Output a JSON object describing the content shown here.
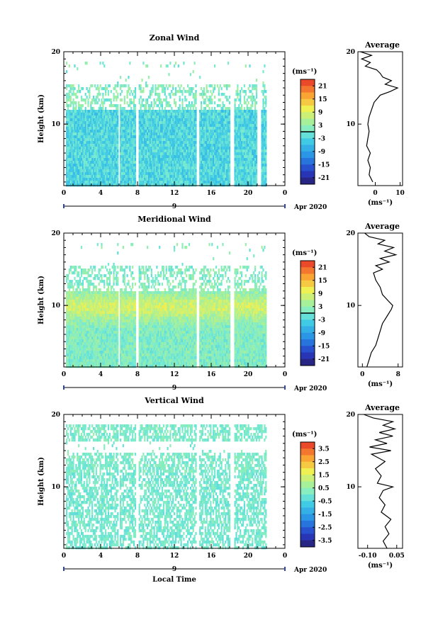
{
  "chart_data": [
    {
      "type": "heatmap",
      "title": "Zonal Wind",
      "ylabel": "Height (km)",
      "xticks": [
        "0",
        "4",
        "8",
        "12",
        "16",
        "20",
        "0"
      ],
      "yticks": [
        "10",
        "20"
      ],
      "xlim": [
        0,
        24
      ],
      "ylim": [
        1.5,
        20
      ],
      "date_marker": "9",
      "date_label": "Apr 2020",
      "colorbar": {
        "unit": "(ms⁻¹)",
        "ticks": [
          "21",
          "15",
          "9",
          "3",
          "-3",
          "-9",
          "-15",
          "-21"
        ],
        "range": [
          -24,
          24
        ],
        "zero_line": 0
      },
      "data_gaps_hours": [
        [
          5.8,
          6.0
        ],
        [
          7.8,
          8.1
        ],
        [
          14.3,
          14.6
        ],
        [
          18.0,
          18.4
        ],
        [
          20.9,
          21.3
        ],
        [
          21.9,
          22.3
        ]
      ],
      "data_end_hour": 22.3,
      "pattern": {
        "lower_mean": -3,
        "upper_mean": 1,
        "noise": 3.5,
        "contour_zero": true
      },
      "profile": {
        "title": "Average",
        "xlabel": "(ms⁻¹)",
        "xticks": [
          "0",
          "10"
        ],
        "yticks": [
          "10",
          "20"
        ],
        "xlim": [
          -7,
          11
        ],
        "points": [
          {
            "h": 2.0,
            "v": -1.0
          },
          {
            "h": 3.0,
            "v": -2.5
          },
          {
            "h": 4.0,
            "v": -2.0
          },
          {
            "h": 5.0,
            "v": -3.0
          },
          {
            "h": 6.0,
            "v": -2.0
          },
          {
            "h": 7.0,
            "v": -3.5
          },
          {
            "h": 8.0,
            "v": -3.0
          },
          {
            "h": 9.0,
            "v": -2.5
          },
          {
            "h": 10.0,
            "v": -3.0
          },
          {
            "h": 11.0,
            "v": -2.5
          },
          {
            "h": 12.0,
            "v": -1.5
          },
          {
            "h": 13.0,
            "v": -0.5
          },
          {
            "h": 14.0,
            "v": 2.0
          },
          {
            "h": 14.5,
            "v": 6.0
          },
          {
            "h": 15.0,
            "v": 9.0
          },
          {
            "h": 15.5,
            "v": 4.0
          },
          {
            "h": 16.0,
            "v": 6.5
          },
          {
            "h": 16.5,
            "v": 3.0
          },
          {
            "h": 17.0,
            "v": 2.0
          },
          {
            "h": 17.5,
            "v": 0.5
          },
          {
            "h": 18.0,
            "v": -4.0
          },
          {
            "h": 18.5,
            "v": -2.0
          },
          {
            "h": 19.0,
            "v": -5.5
          },
          {
            "h": 19.5,
            "v": -1.5
          },
          {
            "h": 20.0,
            "v": -6.0
          }
        ]
      }
    },
    {
      "type": "heatmap",
      "title": "Meridional Wind",
      "ylabel": "Height (km)",
      "xticks": [
        "0",
        "4",
        "8",
        "12",
        "16",
        "20",
        "0"
      ],
      "yticks": [
        "10",
        "20"
      ],
      "xlim": [
        0,
        24
      ],
      "ylim": [
        1.5,
        20
      ],
      "date_marker": "9",
      "date_label": "Apr 2020",
      "colorbar": {
        "unit": "(ms⁻¹)",
        "ticks": [
          "21",
          "15",
          "9",
          "3",
          "-3",
          "-9",
          "-15",
          "-21"
        ],
        "range": [
          -24,
          24
        ],
        "zero_line": 0
      },
      "data_gaps_hours": [
        [
          5.8,
          6.0
        ],
        [
          7.8,
          8.1
        ],
        [
          14.3,
          14.6
        ],
        [
          18.0,
          18.4
        ],
        [
          21.9,
          22.3
        ]
      ],
      "data_end_hour": 22.3,
      "pattern": {
        "lower_mean": 2,
        "peak_height": 10,
        "peak_value": 7,
        "upper_mean": 1,
        "noise": 3,
        "contour_zero": true
      },
      "profile": {
        "title": "Average",
        "xlabel": "(ms⁻¹)",
        "xticks": [
          "0",
          "8"
        ],
        "yticks": [
          "10",
          "20"
        ],
        "xlim": [
          -1,
          9
        ],
        "points": [
          {
            "h": 1.5,
            "v": 1.0
          },
          {
            "h": 2.5,
            "v": 1.5
          },
          {
            "h": 3.5,
            "v": 2.0
          },
          {
            "h": 4.5,
            "v": 3.0
          },
          {
            "h": 5.5,
            "v": 3.5
          },
          {
            "h": 6.5,
            "v": 4.0
          },
          {
            "h": 7.5,
            "v": 4.5
          },
          {
            "h": 8.5,
            "v": 5.5
          },
          {
            "h": 9.5,
            "v": 6.5
          },
          {
            "h": 10.0,
            "v": 6.8
          },
          {
            "h": 10.5,
            "v": 6.0
          },
          {
            "h": 11.5,
            "v": 4.5
          },
          {
            "h": 12.5,
            "v": 4.0
          },
          {
            "h": 13.5,
            "v": 3.0
          },
          {
            "h": 14.5,
            "v": 2.5
          },
          {
            "h": 15.0,
            "v": 4.5
          },
          {
            "h": 15.5,
            "v": 3.0
          },
          {
            "h": 16.0,
            "v": 6.0
          },
          {
            "h": 16.5,
            "v": 4.0
          },
          {
            "h": 17.0,
            "v": 7.5
          },
          {
            "h": 17.5,
            "v": 5.0
          },
          {
            "h": 18.0,
            "v": 7.0
          },
          {
            "h": 18.5,
            "v": 3.5
          },
          {
            "h": 19.0,
            "v": 5.0
          },
          {
            "h": 19.5,
            "v": 1.5
          },
          {
            "h": 20.0,
            "v": 0.5
          }
        ]
      }
    },
    {
      "type": "heatmap",
      "title": "Vertical Wind",
      "ylabel": "Height (km)",
      "xlabel": "Local Time",
      "xticks": [
        "0",
        "4",
        "8",
        "12",
        "16",
        "20",
        "0"
      ],
      "yticks": [
        "10",
        "20"
      ],
      "xlim": [
        0,
        24
      ],
      "ylim": [
        1.5,
        20
      ],
      "date_marker": "9",
      "date_label": "Apr 2020",
      "colorbar": {
        "unit": "(ms⁻¹)",
        "ticks": [
          "3.5",
          "2.5",
          "1.5",
          "0.5",
          "-0.5",
          "-1.5",
          "-2.5",
          "-3.5"
        ],
        "range": [
          -4,
          4
        ]
      },
      "data_gaps_hours": [
        [
          5.8,
          6.0
        ],
        [
          7.8,
          8.1
        ],
        [
          14.3,
          14.6
        ],
        [
          18.0,
          18.4
        ],
        [
          21.9,
          22.3
        ]
      ],
      "data_end_hour": 22.3,
      "pattern": {
        "lower_mean": 0.0,
        "upper_mean": 0.1,
        "noise": 0.35,
        "contour_zero": false
      },
      "profile": {
        "title": "Average",
        "xlabel": "(ms⁻¹)",
        "xticks": [
          "-0.10",
          "0.05"
        ],
        "yticks": [
          "10",
          "20"
        ],
        "xlim": [
          -0.15,
          0.08
        ],
        "points": [
          {
            "h": 1.5,
            "v": 0.0
          },
          {
            "h": 2.5,
            "v": -0.02
          },
          {
            "h": 3.5,
            "v": 0.01
          },
          {
            "h": 4.5,
            "v": -0.01
          },
          {
            "h": 5.5,
            "v": 0.02
          },
          {
            "h": 6.5,
            "v": -0.03
          },
          {
            "h": 7.5,
            "v": -0.01
          },
          {
            "h": 8.5,
            "v": -0.04
          },
          {
            "h": 9.5,
            "v": -0.02
          },
          {
            "h": 10.0,
            "v": 0.03
          },
          {
            "h": 10.5,
            "v": -0.05
          },
          {
            "h": 11.5,
            "v": -0.03
          },
          {
            "h": 12.5,
            "v": -0.06
          },
          {
            "h": 13.5,
            "v": -0.01
          },
          {
            "h": 14.5,
            "v": -0.08
          },
          {
            "h": 15.0,
            "v": 0.02
          },
          {
            "h": 15.5,
            "v": -0.09
          },
          {
            "h": 16.0,
            "v": 0.0
          },
          {
            "h": 16.5,
            "v": -0.06
          },
          {
            "h": 17.0,
            "v": 0.03
          },
          {
            "h": 17.5,
            "v": -0.04
          },
          {
            "h": 18.0,
            "v": 0.04
          },
          {
            "h": 18.5,
            "v": -0.02
          },
          {
            "h": 19.0,
            "v": 0.03
          },
          {
            "h": 19.5,
            "v": -0.07
          },
          {
            "h": 20.0,
            "v": -0.12
          }
        ]
      }
    }
  ]
}
